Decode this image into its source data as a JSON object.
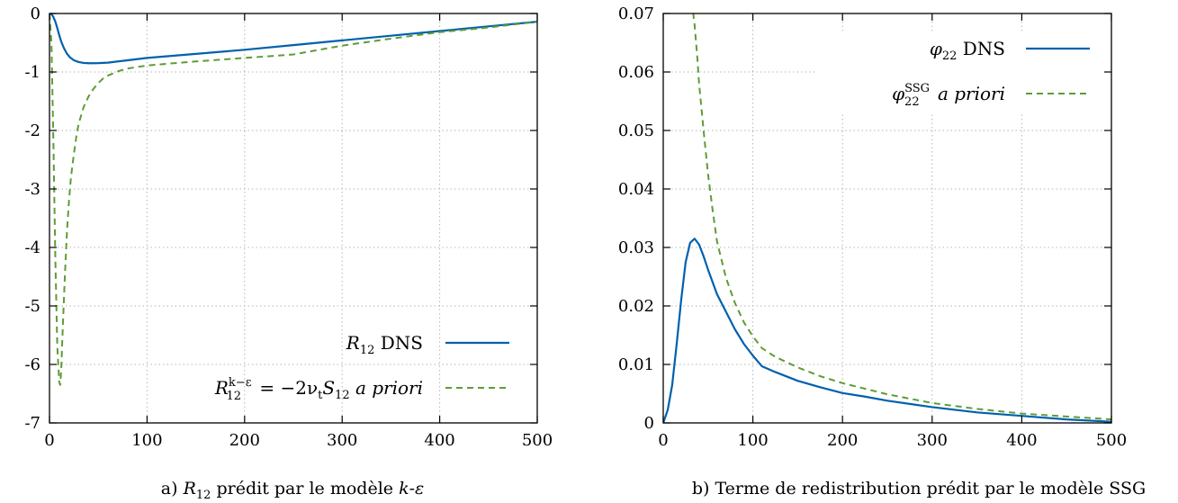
{
  "colors": {
    "dns": "#0060ad",
    "model": "#5e9c36"
  },
  "chart_data": [
    {
      "type": "line",
      "xlim": [
        0,
        500
      ],
      "ylim": [
        -7,
        0
      ],
      "xticks": [
        0,
        100,
        200,
        300,
        400,
        500
      ],
      "yticks": [
        0,
        -1,
        -2,
        -3,
        -4,
        -5,
        -6,
        -7
      ],
      "grid": true,
      "legend_position": "bottom-right",
      "caption": {
        "prefix": "a) ",
        "symbol": "R",
        "subscript": "12",
        "middle": " prédit par le modèle ",
        "model_k": "k",
        "dash": "-",
        "model_eps": "ε"
      },
      "series": [
        {
          "name": "R12 DNS",
          "legend": {
            "symbol": "R",
            "subscript": "12",
            "suffix": " DNS"
          },
          "style": "solid",
          "color": "#0060ad",
          "x": [
            0,
            2,
            4,
            6,
            8,
            10,
            12,
            15,
            18,
            21,
            25,
            30,
            35,
            40,
            45,
            50,
            60,
            80,
            100,
            150,
            200,
            250,
            300,
            350,
            400,
            450,
            500
          ],
          "y": [
            0,
            -0.01,
            -0.06,
            -0.14,
            -0.25,
            -0.37,
            -0.48,
            -0.6,
            -0.69,
            -0.75,
            -0.8,
            -0.83,
            -0.845,
            -0.85,
            -0.85,
            -0.848,
            -0.84,
            -0.8,
            -0.76,
            -0.69,
            -0.62,
            -0.54,
            -0.46,
            -0.38,
            -0.3,
            -0.22,
            -0.14
          ]
        },
        {
          "name": "R12 k-eps a priori",
          "legend": {
            "symbol": "R",
            "subscript": "12",
            "superscript": "k−ε",
            "equation": " = −2ν",
            "nu_sub": "t",
            "s_symbol": "S",
            "s_sub": "12",
            "suffix": " a priori"
          },
          "style": "dashed",
          "color": "#5e9c36",
          "x": [
            0,
            2,
            4,
            6,
            8,
            10,
            11,
            12,
            14,
            16,
            18,
            20,
            22,
            25,
            28,
            30,
            35,
            40,
            45,
            50,
            55,
            60,
            70,
            80,
            100,
            120,
            150,
            200,
            250,
            300,
            350,
            400,
            450,
            500
          ],
          "y": [
            0,
            -0.5,
            -2.2,
            -4.2,
            -5.7,
            -6.3,
            -6.35,
            -6.1,
            -5.2,
            -4.4,
            -3.7,
            -3.2,
            -2.8,
            -2.4,
            -2.05,
            -1.88,
            -1.6,
            -1.42,
            -1.29,
            -1.19,
            -1.11,
            -1.06,
            -0.99,
            -0.94,
            -0.89,
            -0.86,
            -0.82,
            -0.76,
            -0.7,
            -0.55,
            -0.43,
            -0.32,
            -0.24,
            -0.14
          ]
        }
      ]
    },
    {
      "type": "line",
      "xlim": [
        0,
        500
      ],
      "ylim": [
        0,
        0.07
      ],
      "xticks": [
        0,
        100,
        200,
        300,
        400,
        500
      ],
      "yticks": [
        0,
        0.01,
        0.02,
        0.03,
        0.04,
        0.05,
        0.06,
        0.07
      ],
      "grid": true,
      "legend_position": "top-right",
      "caption": {
        "text": "b) Terme de redistribution prédit par le modèle SSG"
      },
      "series": [
        {
          "name": "phi22 DNS",
          "legend": {
            "symbol": "φ",
            "subscript": "22",
            "suffix": " DNS"
          },
          "style": "solid",
          "color": "#0060ad",
          "x": [
            0,
            5,
            10,
            15,
            20,
            25,
            30,
            35,
            40,
            45,
            50,
            60,
            70,
            80,
            90,
            100,
            110,
            125,
            150,
            175,
            200,
            225,
            250,
            300,
            350,
            400,
            450,
            500
          ],
          "y": [
            0,
            0.0022,
            0.0065,
            0.0135,
            0.021,
            0.0275,
            0.0308,
            0.0315,
            0.0305,
            0.0285,
            0.0262,
            0.022,
            0.019,
            0.016,
            0.0135,
            0.0115,
            0.0097,
            0.0087,
            0.0072,
            0.0061,
            0.0051,
            0.0045,
            0.0038,
            0.0027,
            0.0018,
            0.0012,
            0.0006,
            0.0002
          ]
        },
        {
          "name": "phi22 SSG a priori",
          "legend": {
            "symbol": "φ",
            "subscript": "22",
            "superscript": "SSG",
            "suffix": " a priori"
          },
          "style": "dashed",
          "color": "#5e9c36",
          "x": [
            32,
            35,
            38,
            40,
            45,
            50,
            55,
            60,
            70,
            80,
            90,
            100,
            110,
            125,
            150,
            175,
            200,
            250,
            300,
            350,
            400,
            450,
            500
          ],
          "y": [
            0.072,
            0.068,
            0.0625,
            0.058,
            0.05,
            0.0425,
            0.0365,
            0.031,
            0.0248,
            0.0205,
            0.0172,
            0.0148,
            0.0128,
            0.0113,
            0.0095,
            0.008,
            0.0068,
            0.0049,
            0.0034,
            0.0024,
            0.0016,
            0.0011,
            0.0006
          ]
        }
      ]
    }
  ]
}
